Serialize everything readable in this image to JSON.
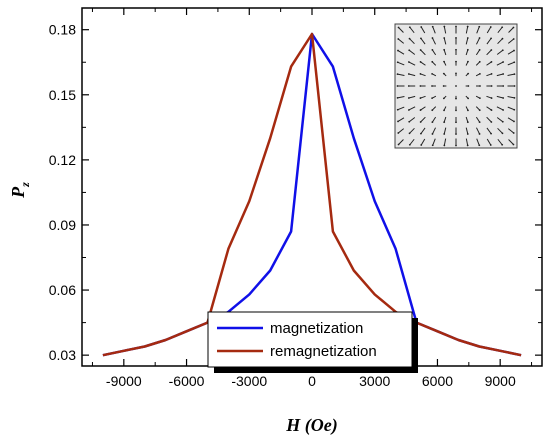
{
  "chart_data": {
    "type": "line",
    "xlabel": "H (Oe)",
    "ylabel_main": "P",
    "ylabel_sub": "z",
    "xlim": [
      -11000,
      11000
    ],
    "ylim": [
      0.025,
      0.19
    ],
    "xticks": [
      -9000,
      -6000,
      -3000,
      0,
      3000,
      6000,
      9000
    ],
    "yticks": [
      0.03,
      0.06,
      0.09,
      0.12,
      0.15,
      0.18
    ],
    "xtick_labels": [
      "-9000",
      "-6000",
      "-3000",
      "0",
      "3000",
      "6000",
      "9000"
    ],
    "ytick_labels": [
      "0.03",
      "0.06",
      "0.09",
      "0.12",
      "0.15",
      "0.18"
    ],
    "legend_position": "bottom-center",
    "grid": false,
    "series": [
      {
        "name": "magnetization",
        "color": "#1010e8",
        "x": [
          -10000,
          -9000,
          -8000,
          -7000,
          -6000,
          -5000,
          -4000,
          -3000,
          -2000,
          -1000,
          0,
          1000,
          2000,
          3000,
          4000,
          5000,
          6000,
          7000,
          8000,
          9000,
          10000
        ],
        "y": [
          0.03,
          0.032,
          0.034,
          0.037,
          0.041,
          0.045,
          0.05,
          0.058,
          0.069,
          0.087,
          0.178,
          0.163,
          0.13,
          0.101,
          0.079,
          0.045,
          0.041,
          0.037,
          0.034,
          0.032,
          0.03
        ]
      },
      {
        "name": "remagnetization",
        "color": "#a52a10",
        "x": [
          -10000,
          -9000,
          -8000,
          -7000,
          -6000,
          -5000,
          -4000,
          -3000,
          -2000,
          -1000,
          0,
          1000,
          2000,
          3000,
          4000,
          5000,
          6000,
          7000,
          8000,
          9000,
          10000
        ],
        "y": [
          0.03,
          0.032,
          0.034,
          0.037,
          0.041,
          0.045,
          0.079,
          0.101,
          0.13,
          0.163,
          0.178,
          0.087,
          0.069,
          0.058,
          0.05,
          0.045,
          0.041,
          0.037,
          0.034,
          0.032,
          0.03
        ]
      }
    ]
  }
}
